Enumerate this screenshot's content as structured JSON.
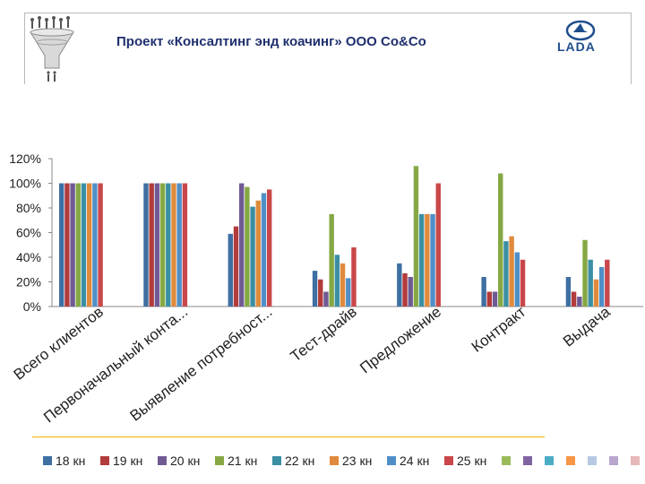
{
  "header": {
    "title": "Проект «Консалтинг энд коачинг» ООО Со&Со",
    "brand": "LADA"
  },
  "chart_data": {
    "type": "bar",
    "ylim": [
      0,
      1.2
    ],
    "yticks": [
      "0%",
      "20%",
      "40%",
      "60%",
      "80%",
      "100%",
      "120%"
    ],
    "categories": [
      "Всего клиентов",
      "Первоначальный конта...",
      "Выявление потребност...",
      "Тест-драйв",
      "Предложение",
      "Контракт",
      "Выдача"
    ],
    "series": [
      {
        "name": "18 кн",
        "color": "#3e6fa3",
        "values": [
          1.0,
          1.0,
          0.59,
          0.29,
          0.35,
          0.24,
          0.24
        ]
      },
      {
        "name": "19 кн",
        "color": "#b23b3b",
        "values": [
          1.0,
          1.0,
          0.65,
          0.22,
          0.27,
          0.12,
          0.12
        ]
      },
      {
        "name": "20 кн",
        "color": "#6f5a94",
        "values": [
          1.0,
          1.0,
          1.0,
          0.12,
          0.24,
          0.12,
          0.08
        ]
      },
      {
        "name": "21 кн",
        "color": "#86a844",
        "values": [
          1.0,
          1.0,
          0.97,
          0.75,
          1.14,
          1.08,
          0.54
        ]
      },
      {
        "name": "22 кн",
        "color": "#3b8fa3",
        "values": [
          1.0,
          1.0,
          0.81,
          0.42,
          0.75,
          0.53,
          0.38
        ]
      },
      {
        "name": "23 кн",
        "color": "#e08a3c",
        "values": [
          1.0,
          1.0,
          0.86,
          0.35,
          0.75,
          0.57,
          0.22
        ]
      },
      {
        "name": "24 кн",
        "color": "#4f8fc8",
        "values": [
          1.0,
          1.0,
          0.92,
          0.23,
          0.75,
          0.44,
          0.32
        ]
      },
      {
        "name": "25 кн",
        "color": "#c9474a",
        "values": [
          1.0,
          1.0,
          0.95,
          0.48,
          1.0,
          0.38,
          0.38
        ]
      }
    ],
    "extra_legend_swatches": [
      "#9bbb59",
      "#8064a2",
      "#4bacc6",
      "#f79646",
      "#b7c9e2",
      "#b9a7cf",
      "#e6b9b8"
    ]
  }
}
